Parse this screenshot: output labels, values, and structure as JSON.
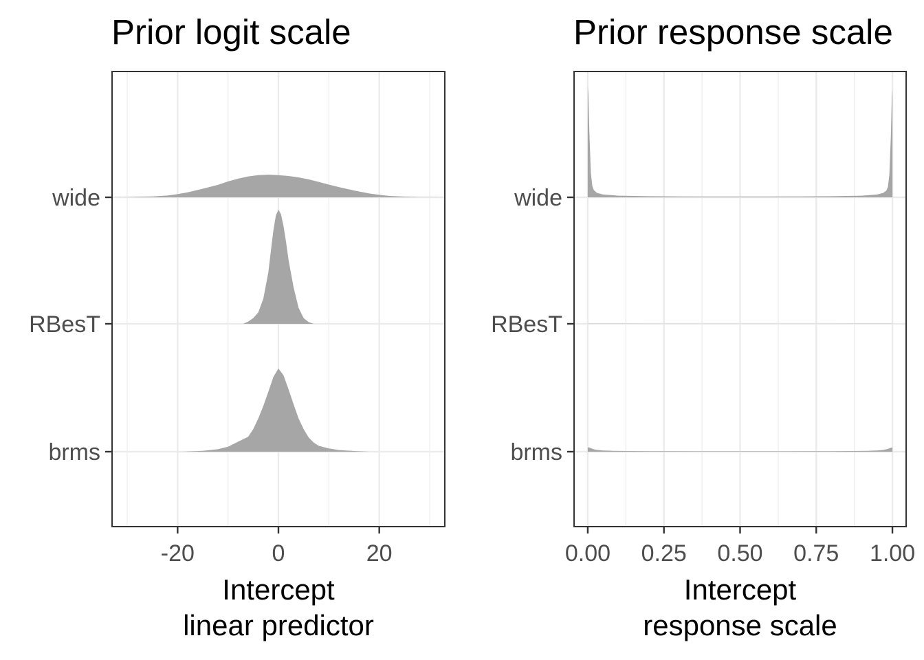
{
  "chart_data": [
    {
      "type": "area",
      "subtype": "density-ridgeline",
      "title": "Prior logit scale",
      "xlabel_lines": [
        "Intercept",
        "linear predictor"
      ],
      "ylabel": "",
      "xlim": [
        -33,
        33
      ],
      "x_ticks": [
        -20,
        0,
        20
      ],
      "x_tick_labels": [
        "-20",
        "0",
        "20"
      ],
      "grid": true,
      "fill_color": "#a6a6a6",
      "categories": [
        "wide",
        "RBesT",
        "brms"
      ],
      "series": [
        {
          "name": "wide",
          "x": [
            -33,
            -30,
            -28,
            -25,
            -22,
            -20,
            -18,
            -15,
            -12,
            -10,
            -8,
            -6,
            -4,
            -2,
            0,
            2,
            4,
            6,
            8,
            10,
            12,
            15,
            18,
            20,
            22,
            25,
            28,
            30,
            33
          ],
          "density": [
            0.0,
            0.01,
            0.02,
            0.04,
            0.08,
            0.14,
            0.22,
            0.38,
            0.55,
            0.7,
            0.82,
            0.92,
            0.98,
            1.0,
            0.98,
            0.94,
            0.88,
            0.79,
            0.68,
            0.56,
            0.45,
            0.3,
            0.17,
            0.11,
            0.06,
            0.03,
            0.01,
            0.005,
            0.0
          ]
        },
        {
          "name": "RBesT",
          "x": [
            -7,
            -6,
            -5,
            -4,
            -3,
            -2,
            -1.5,
            -1,
            -0.5,
            0,
            0.5,
            1,
            1.5,
            2,
            3,
            4,
            5,
            6,
            7
          ],
          "density": [
            0.0,
            0.02,
            0.05,
            0.1,
            0.22,
            0.45,
            0.64,
            0.82,
            0.95,
            1.0,
            0.96,
            0.86,
            0.72,
            0.56,
            0.32,
            0.14,
            0.05,
            0.015,
            0.0
          ]
        },
        {
          "name": "brms",
          "x": [
            -19,
            -15,
            -12,
            -10,
            -8,
            -6,
            -5,
            -4,
            -3,
            -2,
            -1,
            0,
            1,
            2,
            3,
            4,
            5,
            6,
            7,
            8,
            10,
            12,
            15,
            18
          ],
          "density": [
            0.0,
            0.01,
            0.03,
            0.06,
            0.12,
            0.18,
            0.27,
            0.4,
            0.55,
            0.72,
            0.9,
            1.0,
            0.92,
            0.75,
            0.57,
            0.4,
            0.27,
            0.17,
            0.11,
            0.07,
            0.04,
            0.02,
            0.008,
            0.0
          ]
        }
      ]
    },
    {
      "type": "area",
      "subtype": "density-ridgeline",
      "title": "Prior response scale",
      "xlabel_lines": [
        "Intercept",
        "response scale"
      ],
      "ylabel": "",
      "xlim": [
        -0.045,
        1.045
      ],
      "x_ticks": [
        0,
        0.25,
        0.5,
        0.75,
        1
      ],
      "x_tick_labels": [
        "0.00",
        "0.25",
        "0.50",
        "0.75",
        "1.00"
      ],
      "grid": true,
      "fill_color": "#a6a6a6",
      "categories": [
        "wide",
        "RBesT",
        "brms"
      ],
      "series": [
        {
          "name": "wide",
          "x": [
            0,
            0.002,
            0.005,
            0.01,
            0.015,
            0.02,
            0.03,
            0.05,
            0.1,
            0.2,
            0.3,
            0.4,
            0.5,
            0.6,
            0.7,
            0.8,
            0.9,
            0.95,
            0.97,
            0.98,
            0.985,
            0.99,
            0.995,
            0.998,
            1
          ],
          "density": [
            1.0,
            0.92,
            0.6,
            0.22,
            0.1,
            0.065,
            0.04,
            0.025,
            0.015,
            0.01,
            0.008,
            0.007,
            0.007,
            0.007,
            0.008,
            0.01,
            0.015,
            0.025,
            0.04,
            0.06,
            0.09,
            0.2,
            0.55,
            0.9,
            0.97
          ]
        },
        {
          "name": "RBesT",
          "x": [
            0,
            0.05,
            0.1,
            0.2,
            0.3,
            0.4,
            0.5,
            0.6,
            0.7,
            0.8,
            0.9,
            0.95,
            1
          ],
          "density": [
            0.035,
            0.035,
            0.03,
            0.025,
            0.02,
            0.018,
            0.016,
            0.018,
            0.02,
            0.025,
            0.03,
            0.035,
            0.04
          ]
        },
        {
          "name": "brms",
          "x": [
            0,
            0.005,
            0.01,
            0.02,
            0.03,
            0.05,
            0.08,
            0.1,
            0.2,
            0.3,
            0.4,
            0.5,
            0.6,
            0.7,
            0.8,
            0.9,
            0.92,
            0.95,
            0.97,
            0.98,
            0.99,
            0.995,
            1
          ],
          "density": [
            0.19,
            0.19,
            0.16,
            0.11,
            0.08,
            0.055,
            0.04,
            0.035,
            0.025,
            0.022,
            0.02,
            0.02,
            0.02,
            0.022,
            0.025,
            0.035,
            0.04,
            0.055,
            0.08,
            0.11,
            0.15,
            0.18,
            0.19
          ]
        }
      ]
    }
  ]
}
